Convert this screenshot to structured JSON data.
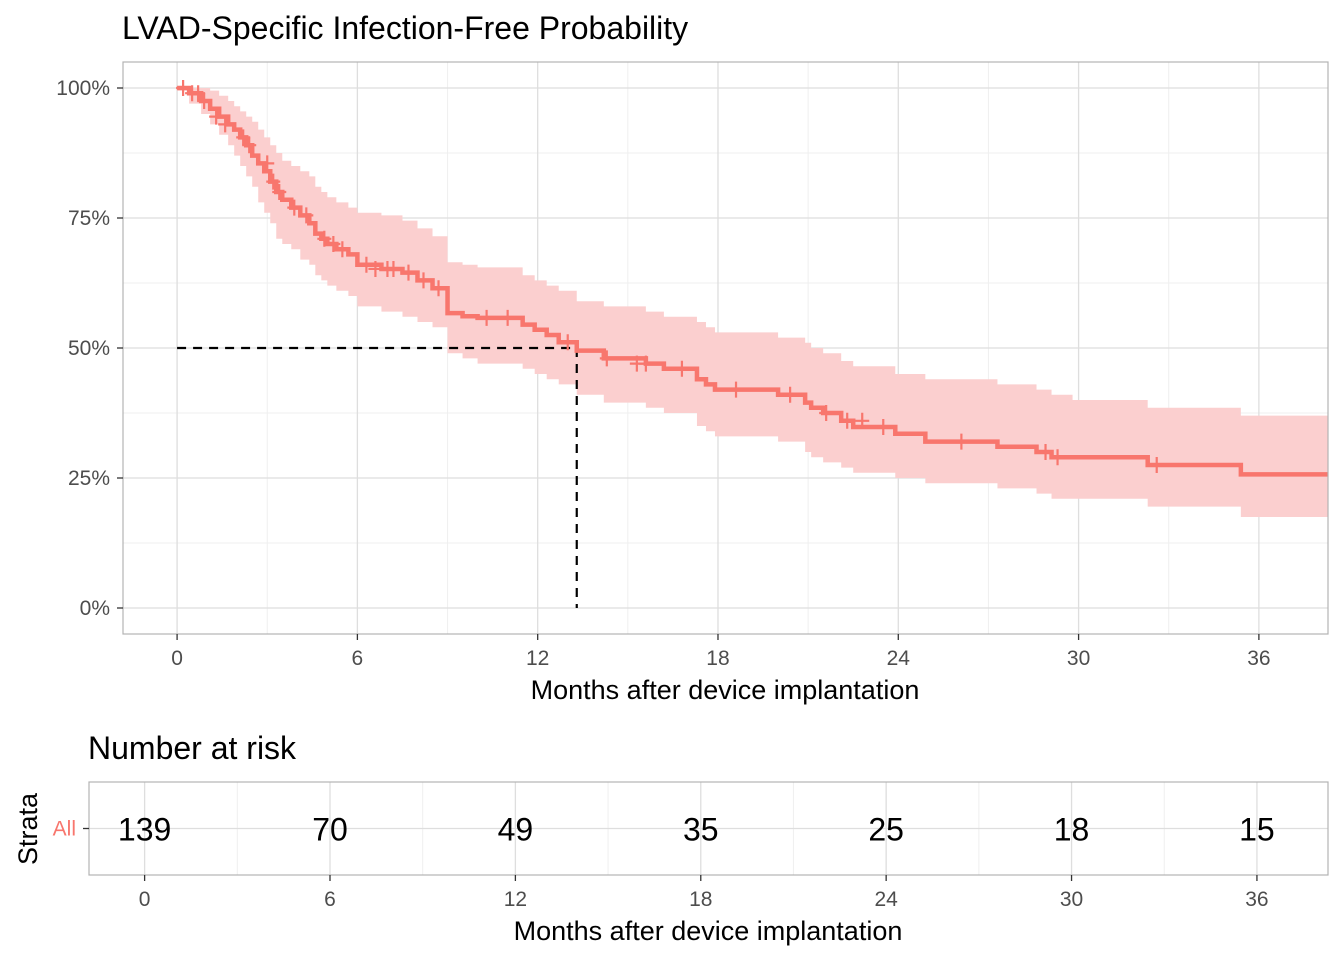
{
  "chart_data": [
    {
      "type": "line",
      "subtype": "kaplan-meier",
      "title": "LVAD-Specific Infection-Free Probability",
      "xlabel": "Months after device implantation",
      "ylabel": "",
      "xlim": [
        -1.8,
        38.3
      ],
      "ylim": [
        -0.05,
        1.05
      ],
      "xticks": [
        0,
        6,
        12,
        18,
        24,
        30,
        36
      ],
      "xtick_labels": [
        "0",
        "6",
        "12",
        "18",
        "24",
        "30",
        "36"
      ],
      "yticks": [
        0,
        0.25,
        0.5,
        0.75,
        1.0
      ],
      "ytick_labels": [
        "0%",
        "25%",
        "50%",
        "75%",
        "100%"
      ],
      "grid": true,
      "median_survival": 13.3,
      "color": "#F8766D",
      "band_color": "#FBCFCF",
      "series": [
        {
          "name": "All",
          "x": [
            0,
            0.4,
            0.8,
            1.1,
            1.4,
            1.7,
            1.9,
            2.1,
            2.3,
            2.5,
            2.7,
            2.9,
            3.1,
            3.3,
            3.5,
            3.8,
            4.1,
            4.4,
            4.6,
            4.8,
            5.0,
            5.3,
            5.7,
            6.0,
            6.8,
            7.5,
            8.0,
            8.5,
            9.0,
            9.5,
            10.0,
            11.5,
            11.9,
            12.3,
            12.7,
            13.3,
            14.2,
            15.6,
            16.2,
            17.3,
            17.6,
            17.9,
            20.0,
            20.9,
            21.1,
            21.5,
            22.1,
            22.5,
            23.9,
            24.9,
            27.3,
            28.6,
            29.1,
            29.8,
            32.3,
            35.4,
            38.3
          ],
          "y": [
            1.0,
            0.99,
            0.975,
            0.96,
            0.945,
            0.93,
            0.92,
            0.905,
            0.89,
            0.87,
            0.855,
            0.84,
            0.82,
            0.8,
            0.785,
            0.77,
            0.755,
            0.74,
            0.72,
            0.71,
            0.7,
            0.69,
            0.68,
            0.66,
            0.652,
            0.645,
            0.63,
            0.615,
            0.567,
            0.561,
            0.558,
            0.545,
            0.535,
            0.525,
            0.511,
            0.495,
            0.48,
            0.47,
            0.46,
            0.44,
            0.43,
            0.42,
            0.41,
            0.395,
            0.385,
            0.375,
            0.36,
            0.348,
            0.335,
            0.32,
            0.31,
            0.3,
            0.29,
            0.29,
            0.275,
            0.257,
            0.257
          ],
          "ci_lower": [
            0.995,
            0.97,
            0.95,
            0.93,
            0.91,
            0.89,
            0.87,
            0.85,
            0.83,
            0.81,
            0.78,
            0.76,
            0.74,
            0.71,
            0.7,
            0.69,
            0.67,
            0.66,
            0.64,
            0.63,
            0.62,
            0.61,
            0.6,
            0.58,
            0.57,
            0.56,
            0.55,
            0.54,
            0.49,
            0.48,
            0.47,
            0.46,
            0.45,
            0.44,
            0.43,
            0.41,
            0.395,
            0.385,
            0.375,
            0.35,
            0.34,
            0.33,
            0.32,
            0.3,
            0.29,
            0.28,
            0.27,
            0.26,
            0.25,
            0.24,
            0.23,
            0.22,
            0.21,
            0.21,
            0.195,
            0.175,
            0.175
          ],
          "ci_upper": [
            1.0,
            1.0,
            1.0,
            0.995,
            0.985,
            0.975,
            0.965,
            0.955,
            0.945,
            0.935,
            0.92,
            0.905,
            0.89,
            0.875,
            0.86,
            0.85,
            0.84,
            0.83,
            0.81,
            0.8,
            0.79,
            0.78,
            0.77,
            0.76,
            0.755,
            0.745,
            0.73,
            0.715,
            0.665,
            0.66,
            0.655,
            0.64,
            0.63,
            0.62,
            0.61,
            0.59,
            0.58,
            0.57,
            0.56,
            0.55,
            0.54,
            0.53,
            0.52,
            0.51,
            0.5,
            0.49,
            0.475,
            0.465,
            0.45,
            0.44,
            0.43,
            0.42,
            0.41,
            0.4,
            0.385,
            0.37,
            0.37
          ],
          "censored_x": [
            0.2,
            0.5,
            0.7,
            0.9,
            1.3,
            1.6,
            2.2,
            2.4,
            3.0,
            3.2,
            3.4,
            3.9,
            4.3,
            4.9,
            5.2,
            5.5,
            6.3,
            6.6,
            7.0,
            7.2,
            7.7,
            8.2,
            8.7,
            10.3,
            11.0,
            13.0,
            14.3,
            15.3,
            15.6,
            16.8,
            18.6,
            20.4,
            21.6,
            22.3,
            22.8,
            23.5,
            26.1,
            28.9,
            29.3,
            32.6
          ],
          "censored_y": [
            1.0,
            0.99,
            0.99,
            0.975,
            0.945,
            0.93,
            0.905,
            0.89,
            0.855,
            0.82,
            0.8,
            0.77,
            0.755,
            0.71,
            0.7,
            0.69,
            0.66,
            0.652,
            0.652,
            0.652,
            0.645,
            0.63,
            0.615,
            0.558,
            0.558,
            0.511,
            0.48,
            0.47,
            0.47,
            0.46,
            0.42,
            0.41,
            0.375,
            0.36,
            0.36,
            0.348,
            0.32,
            0.3,
            0.29,
            0.275
          ]
        }
      ]
    },
    {
      "type": "table",
      "title": "Number at risk",
      "xlabel": "Months after device implantation",
      "ylabel": "Strata",
      "strata": [
        "All"
      ],
      "x": [
        0,
        6,
        12,
        18,
        24,
        30,
        36
      ],
      "xtick_labels": [
        "0",
        "6",
        "12",
        "18",
        "24",
        "30",
        "36"
      ],
      "xlim": [
        -1.8,
        38.3
      ],
      "values": [
        139,
        70,
        49,
        35,
        25,
        18,
        15
      ]
    }
  ]
}
